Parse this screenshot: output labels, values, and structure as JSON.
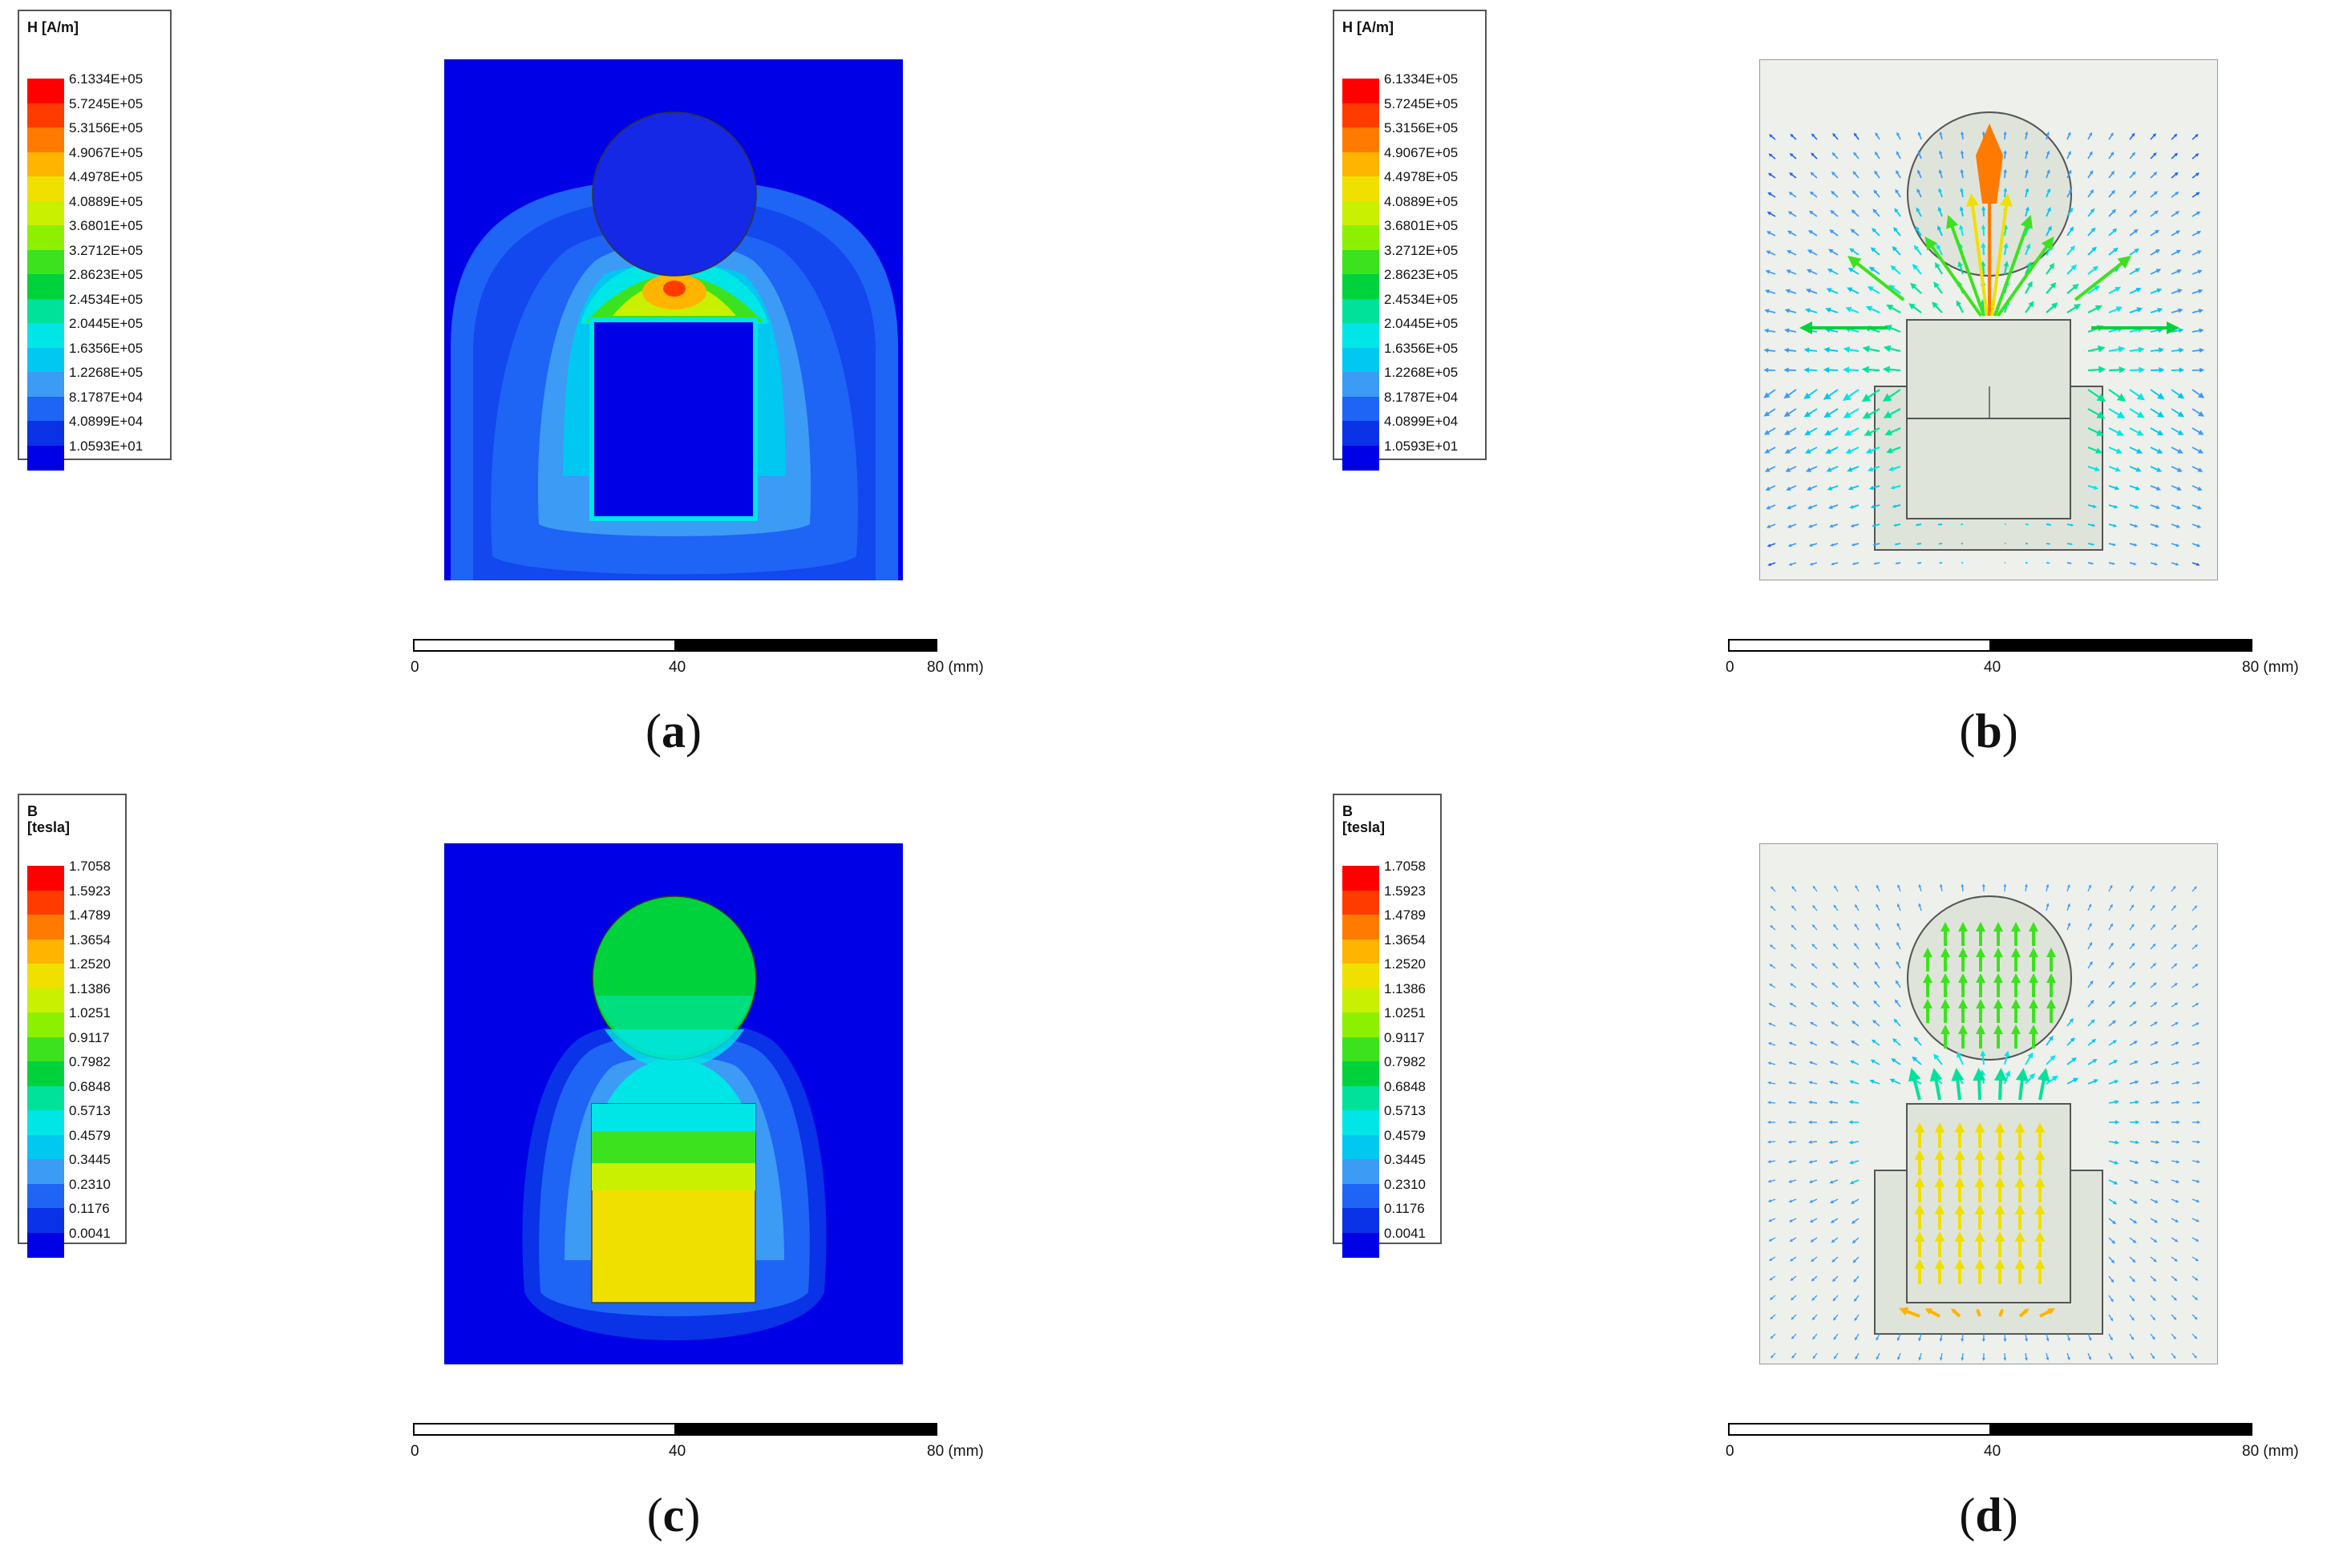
{
  "field_h": {
    "title": "H [A/m]",
    "labels": [
      "6.1334E+05",
      "5.7245E+05",
      "5.3156E+05",
      "4.9067E+05",
      "4.4978E+05",
      "4.0889E+05",
      "3.6801E+05",
      "3.2712E+05",
      "2.8623E+05",
      "2.4534E+05",
      "2.0445E+05",
      "1.6356E+05",
      "1.2268E+05",
      "8.1787E+04",
      "4.0899E+04",
      "1.0593E+01"
    ]
  },
  "field_b": {
    "title": "B\n[tesla]",
    "labels": [
      "1.7058",
      "1.5923",
      "1.4789",
      "1.3654",
      "1.2520",
      "1.1386",
      "1.0251",
      "0.9117",
      "0.7982",
      "0.6848",
      "0.5713",
      "0.4579",
      "0.3445",
      "0.2310",
      "0.1176",
      "0.0041"
    ]
  },
  "colors": [
    "#ff0000",
    "#ff3b00",
    "#ff7a00",
    "#ffb400",
    "#f0e000",
    "#c8f000",
    "#8cf000",
    "#3ce21e",
    "#00d23c",
    "#00e29a",
    "#00e6e6",
    "#00c8f0",
    "#3c9bf5",
    "#1e64f5",
    "#0a32e6",
    "#0000e6"
  ],
  "scale": {
    "tick_0": "0",
    "tick_40": "40",
    "tick_80": "80 (mm)"
  },
  "panels": [
    {
      "caption_letter": "a",
      "legend": "field_h",
      "kind": "h-contour"
    },
    {
      "caption_letter": "b",
      "legend": "field_h",
      "kind": "h-vector"
    },
    {
      "caption_letter": "c",
      "legend": "field_b",
      "kind": "b-contour"
    },
    {
      "caption_letter": "d",
      "legend": "field_b",
      "kind": "b-vector"
    }
  ]
}
